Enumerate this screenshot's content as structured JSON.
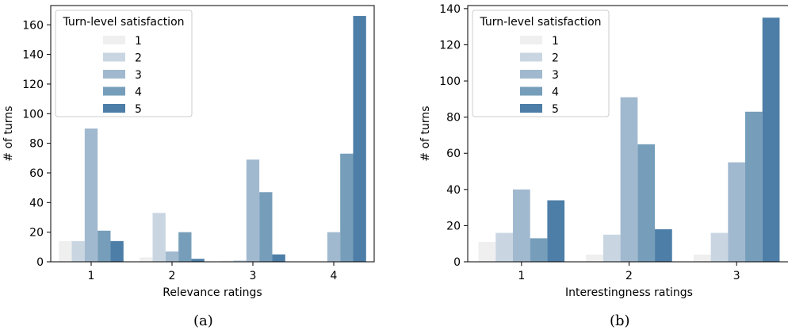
{
  "colors": {
    "levels": [
      "#efefef",
      "#c9d6e2",
      "#a1b9cf",
      "#769eba",
      "#4d7ea7"
    ],
    "axis": "#000000",
    "legend_border": "#cccccc"
  },
  "captions": [
    "(a)",
    "(b)"
  ],
  "chart_data": [
    {
      "type": "bar",
      "categories": [
        "1",
        "2",
        "3",
        "4"
      ],
      "xlabel": "Relevance ratings",
      "ylabel": "# of turns",
      "ylim": [
        0,
        173
      ],
      "yticks": [
        0,
        20,
        40,
        60,
        80,
        100,
        120,
        140,
        160
      ],
      "legend": {
        "title": "Turn-level satisfaction",
        "position": "top-left"
      },
      "series": [
        {
          "name": "1",
          "values": [
            14,
            3,
            1,
            0
          ]
        },
        {
          "name": "2",
          "values": [
            14,
            33,
            1,
            0
          ]
        },
        {
          "name": "3",
          "values": [
            90,
            7,
            69,
            20
          ]
        },
        {
          "name": "4",
          "values": [
            21,
            20,
            47,
            73
          ]
        },
        {
          "name": "5",
          "values": [
            14,
            2,
            5,
            166
          ]
        }
      ]
    },
    {
      "type": "bar",
      "categories": [
        "1",
        "2",
        "3"
      ],
      "xlabel": "Interestingness ratings",
      "ylabel": "# of turns",
      "ylim": [
        0,
        141.7
      ],
      "yticks": [
        0,
        20,
        40,
        60,
        80,
        100,
        120,
        140
      ],
      "legend": {
        "title": "Turn-level satisfaction",
        "position": "top-left"
      },
      "series": [
        {
          "name": "1",
          "values": [
            11,
            4,
            4
          ]
        },
        {
          "name": "2",
          "values": [
            16,
            15,
            16
          ]
        },
        {
          "name": "3",
          "values": [
            40,
            91,
            55
          ]
        },
        {
          "name": "4",
          "values": [
            13,
            65,
            83
          ]
        },
        {
          "name": "5",
          "values": [
            34,
            18,
            135
          ]
        }
      ]
    }
  ]
}
